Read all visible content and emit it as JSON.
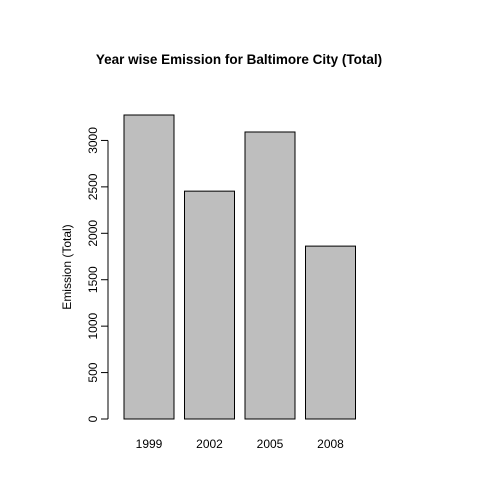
{
  "chart_data": {
    "type": "bar",
    "title": "Year wise Emission for Baltimore City (Total)",
    "xlabel": "",
    "ylabel": "Emission (Total)",
    "categories": [
      "1999",
      "2002",
      "2005",
      "2008"
    ],
    "values": [
      3274,
      2454,
      3091,
      1862
    ],
    "ylim": [
      0,
      3274
    ],
    "yticks": [
      "0",
      "500",
      "1000",
      "1500",
      "2000",
      "2500",
      "3000"
    ],
    "grid": false,
    "colors": {
      "bar_fill": "#bebebe",
      "bar_stroke": "#000000",
      "background": "#ffffff"
    }
  }
}
